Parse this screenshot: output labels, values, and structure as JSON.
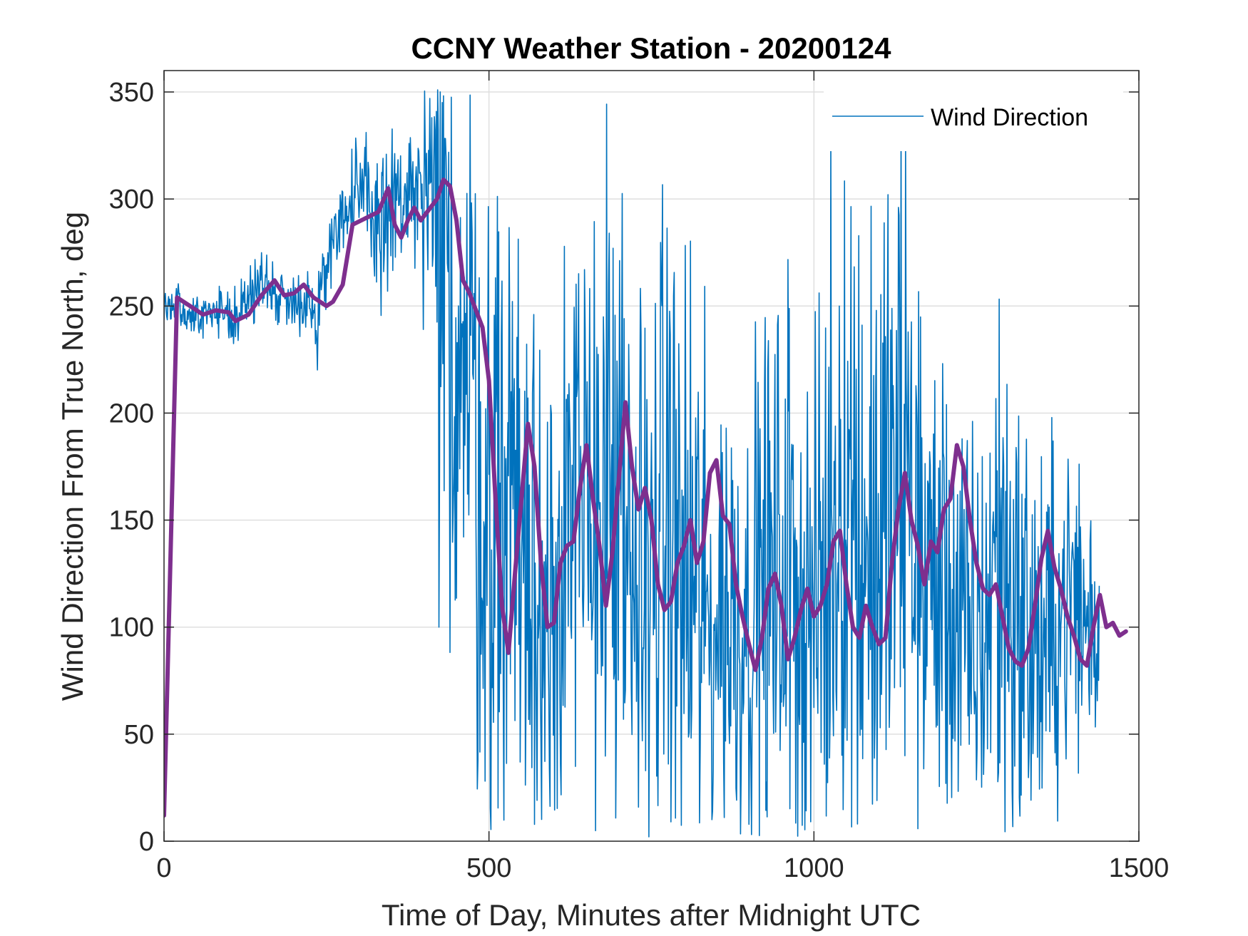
{
  "chart_data": {
    "type": "line",
    "title": "CCNY Weather Station - 20200124",
    "xlabel": "Time of Day, Minutes after Midnight UTC",
    "ylabel": "Wind Direction From True North, deg",
    "xlim": [
      0,
      1500
    ],
    "ylim": [
      0,
      360
    ],
    "xticks": [
      0,
      500,
      1000,
      1500
    ],
    "yticks": [
      0,
      50,
      100,
      150,
      200,
      250,
      300,
      350
    ],
    "xtick_labels": [
      "0",
      "500",
      "1000",
      "1500"
    ],
    "ytick_labels": [
      "0",
      "50",
      "100",
      "150",
      "200",
      "250",
      "300",
      "350"
    ],
    "grid": true,
    "legend_position": "top-right",
    "series": [
      {
        "name": "Wind Direction",
        "color": "#0072BD",
        "line_width": "thin",
        "anchor_x": [
          0,
          20,
          40,
          60,
          80,
          100,
          120,
          140,
          160,
          180,
          200,
          220,
          240,
          250,
          260,
          270,
          290,
          310,
          330,
          350,
          370,
          390,
          400,
          410,
          420,
          440,
          460,
          480,
          500,
          520,
          540,
          560,
          580,
          600,
          620,
          640,
          660,
          680,
          700,
          720,
          740,
          760,
          780,
          800,
          820,
          840,
          860,
          880,
          900,
          920,
          940,
          960,
          980,
          1000,
          1020,
          1040,
          1060,
          1080,
          1100,
          1120,
          1140,
          1160,
          1180,
          1200,
          1220,
          1240,
          1260,
          1280,
          1300,
          1320,
          1340,
          1360,
          1380,
          1400,
          1420,
          1440
        ],
        "anchor_center": [
          250,
          250,
          244,
          246,
          246,
          246,
          248,
          258,
          262,
          253,
          255,
          250,
          248,
          270,
          288,
          291,
          294,
          303,
          288,
          296,
          300,
          298,
          300,
          290,
          255,
          245,
          230,
          200,
          130,
          165,
          180,
          110,
          108,
          130,
          165,
          130,
          170,
          165,
          140,
          105,
          130,
          145,
          160,
          110,
          120,
          95,
          115,
          100,
          110,
          125,
          115,
          135,
          110,
          105,
          130,
          165,
          160,
          135,
          140,
          160,
          175,
          145,
          120,
          120,
          100,
          90,
          95,
          135,
          115,
          100,
          90,
          90,
          110,
          115,
          100,
          100
        ],
        "anchor_spread": [
          8,
          10,
          10,
          10,
          10,
          12,
          14,
          14,
          14,
          14,
          12,
          14,
          25,
          25,
          22,
          20,
          22,
          30,
          40,
          40,
          35,
          30,
          50,
          120,
          150,
          150,
          150,
          150,
          150,
          140,
          140,
          130,
          130,
          130,
          140,
          140,
          140,
          140,
          140,
          130,
          130,
          130,
          140,
          130,
          120,
          110,
          110,
          110,
          110,
          120,
          120,
          120,
          120,
          120,
          130,
          140,
          140,
          140,
          140,
          150,
          150,
          130,
          110,
          100,
          90,
          90,
          100,
          130,
          120,
          100,
          90,
          80,
          80,
          70,
          60,
          60
        ],
        "sample_count": 1440
      },
      {
        "name": "",
        "color": "#7E2F8E",
        "line_width": "thick",
        "points": [
          [
            0,
            12
          ],
          [
            20,
            254
          ],
          [
            40,
            250
          ],
          [
            60,
            246
          ],
          [
            80,
            248
          ],
          [
            100,
            247
          ],
          [
            110,
            243
          ],
          [
            130,
            246
          ],
          [
            150,
            255
          ],
          [
            170,
            262
          ],
          [
            185,
            255
          ],
          [
            200,
            256
          ],
          [
            215,
            260
          ],
          [
            230,
            254
          ],
          [
            250,
            250
          ],
          [
            260,
            252
          ],
          [
            275,
            260
          ],
          [
            290,
            288
          ],
          [
            310,
            291
          ],
          [
            330,
            294
          ],
          [
            345,
            305
          ],
          [
            355,
            288
          ],
          [
            365,
            282
          ],
          [
            375,
            290
          ],
          [
            385,
            296
          ],
          [
            395,
            290
          ],
          [
            405,
            294
          ],
          [
            420,
            300
          ],
          [
            430,
            309
          ],
          [
            440,
            306
          ],
          [
            450,
            290
          ],
          [
            460,
            262
          ],
          [
            470,
            256
          ],
          [
            480,
            248
          ],
          [
            490,
            240
          ],
          [
            500,
            215
          ],
          [
            510,
            160
          ],
          [
            520,
            110
          ],
          [
            530,
            88
          ],
          [
            540,
            125
          ],
          [
            550,
            160
          ],
          [
            560,
            195
          ],
          [
            570,
            175
          ],
          [
            580,
            130
          ],
          [
            590,
            100
          ],
          [
            600,
            102
          ],
          [
            610,
            130
          ],
          [
            620,
            138
          ],
          [
            630,
            140
          ],
          [
            640,
            165
          ],
          [
            650,
            185
          ],
          [
            660,
            160
          ],
          [
            670,
            138
          ],
          [
            680,
            110
          ],
          [
            690,
            135
          ],
          [
            700,
            170
          ],
          [
            710,
            205
          ],
          [
            720,
            175
          ],
          [
            730,
            155
          ],
          [
            740,
            165
          ],
          [
            750,
            150
          ],
          [
            760,
            120
          ],
          [
            770,
            108
          ],
          [
            780,
            112
          ],
          [
            790,
            130
          ],
          [
            800,
            138
          ],
          [
            810,
            150
          ],
          [
            820,
            130
          ],
          [
            830,
            140
          ],
          [
            840,
            172
          ],
          [
            850,
            178
          ],
          [
            860,
            152
          ],
          [
            870,
            148
          ],
          [
            880,
            120
          ],
          [
            890,
            105
          ],
          [
            900,
            92
          ],
          [
            910,
            80
          ],
          [
            920,
            95
          ],
          [
            930,
            118
          ],
          [
            940,
            125
          ],
          [
            950,
            110
          ],
          [
            960,
            85
          ],
          [
            970,
            95
          ],
          [
            980,
            108
          ],
          [
            990,
            118
          ],
          [
            1000,
            105
          ],
          [
            1010,
            110
          ],
          [
            1020,
            120
          ],
          [
            1030,
            140
          ],
          [
            1040,
            145
          ],
          [
            1050,
            120
          ],
          [
            1060,
            100
          ],
          [
            1070,
            95
          ],
          [
            1080,
            110
          ],
          [
            1090,
            100
          ],
          [
            1100,
            92
          ],
          [
            1110,
            95
          ],
          [
            1120,
            130
          ],
          [
            1130,
            155
          ],
          [
            1140,
            172
          ],
          [
            1150,
            150
          ],
          [
            1160,
            138
          ],
          [
            1170,
            120
          ],
          [
            1180,
            140
          ],
          [
            1190,
            135
          ],
          [
            1200,
            155
          ],
          [
            1210,
            160
          ],
          [
            1220,
            185
          ],
          [
            1230,
            175
          ],
          [
            1240,
            150
          ],
          [
            1250,
            130
          ],
          [
            1260,
            118
          ],
          [
            1270,
            115
          ],
          [
            1280,
            120
          ],
          [
            1290,
            105
          ],
          [
            1300,
            90
          ],
          [
            1310,
            84
          ],
          [
            1320,
            82
          ],
          [
            1330,
            90
          ],
          [
            1340,
            110
          ],
          [
            1350,
            132
          ],
          [
            1360,
            145
          ],
          [
            1370,
            128
          ],
          [
            1380,
            118
          ],
          [
            1390,
            105
          ],
          [
            1400,
            96
          ],
          [
            1410,
            85
          ],
          [
            1420,
            82
          ],
          [
            1430,
            100
          ],
          [
            1440,
            115
          ],
          [
            1450,
            100
          ],
          [
            1460,
            102
          ],
          [
            1470,
            96
          ],
          [
            1480,
            98
          ]
        ]
      }
    ]
  }
}
